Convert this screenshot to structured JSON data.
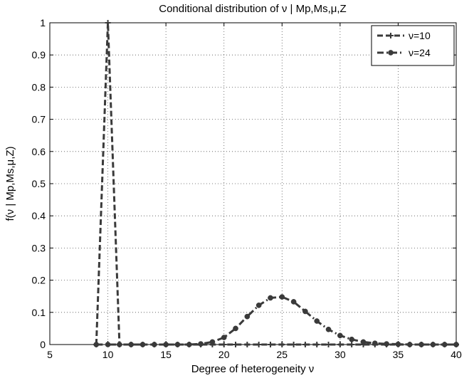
{
  "chart_data": {
    "type": "line",
    "title": "Conditional distribution of ν | Mp,Ms,μ,Z",
    "xlabel": "Degree of heterogeneity ν",
    "ylabel": "f(ν | Mp,Ms,μ,Z)",
    "xlim": [
      5,
      40
    ],
    "ylim": [
      0,
      1
    ],
    "xticks": [
      5,
      10,
      15,
      20,
      25,
      30,
      35,
      40
    ],
    "yticks": [
      0,
      0.1,
      0.2,
      0.3,
      0.4,
      0.5,
      0.6,
      0.7,
      0.8,
      0.9,
      1
    ],
    "xtick_labels": [
      "5",
      "10",
      "15",
      "20",
      "25",
      "30",
      "35",
      "40"
    ],
    "ytick_labels": [
      "0",
      "0.1",
      "0.2",
      "0.3",
      "0.4",
      "0.5",
      "0.6",
      "0.7",
      "0.8",
      "0.9",
      "1"
    ],
    "grid": true,
    "legend_position": "top-right",
    "series": [
      {
        "name": "ν=10",
        "line_style": "dashed",
        "marker": "plus",
        "color": "#3a3a3a",
        "x": [
          9,
          10,
          11,
          12,
          13,
          14,
          15,
          16,
          17,
          18,
          19,
          20,
          21,
          22,
          23,
          24,
          25,
          26,
          27,
          28,
          29,
          30,
          31,
          32,
          33,
          34,
          35,
          36,
          37,
          38,
          39,
          40
        ],
        "y": [
          0,
          1,
          0,
          0,
          0,
          0,
          0,
          0,
          0,
          0,
          0,
          0,
          0,
          0,
          0,
          0,
          0,
          0,
          0,
          0,
          0,
          0,
          0,
          0,
          0,
          0,
          0,
          0,
          0,
          0,
          0,
          0
        ]
      },
      {
        "name": "ν=24",
        "line_style": "dash-dot",
        "marker": "circle",
        "color": "#3a3a3a",
        "x": [
          9,
          10,
          11,
          12,
          13,
          14,
          15,
          16,
          17,
          18,
          19,
          20,
          21,
          22,
          23,
          24,
          25,
          26,
          27,
          28,
          29,
          30,
          31,
          32,
          33,
          34,
          35,
          36,
          37,
          38,
          39,
          40
        ],
        "y": [
          0,
          0,
          0,
          0,
          0,
          0,
          0,
          0,
          0,
          0.002,
          0.008,
          0.022,
          0.05,
          0.087,
          0.122,
          0.145,
          0.148,
          0.133,
          0.103,
          0.073,
          0.047,
          0.028,
          0.016,
          0.008,
          0.004,
          0.002,
          0.001,
          0,
          0,
          0,
          0,
          0
        ]
      }
    ]
  }
}
